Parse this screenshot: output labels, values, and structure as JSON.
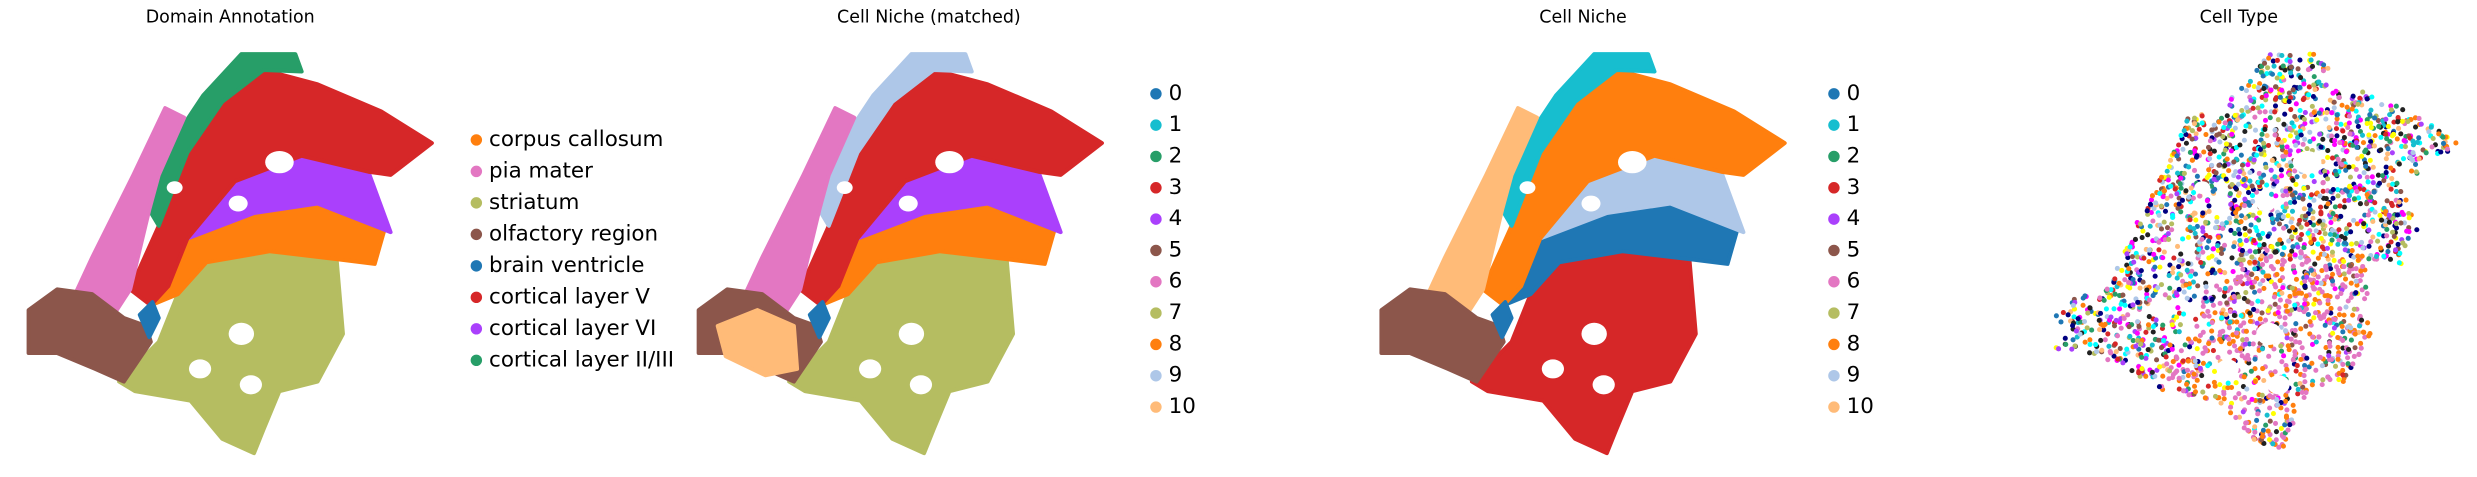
{
  "chart_data": [
    {
      "type": "scatter",
      "title": "Domain Annotation",
      "series": [
        {
          "name": "corpus callosum",
          "color": "#ff7f0e"
        },
        {
          "name": "pia mater",
          "color": "#e377c2"
        },
        {
          "name": "striatum",
          "color": "#b5bd61"
        },
        {
          "name": "olfactory region",
          "color": "#8c564b"
        },
        {
          "name": "brain ventricle",
          "color": "#1f77b4"
        },
        {
          "name": "cortical layer V",
          "color": "#d62728"
        },
        {
          "name": "cortical layer VI",
          "color": "#aa40fc"
        },
        {
          "name": "cortical layer II/III",
          "color": "#279e68"
        }
      ]
    },
    {
      "type": "scatter",
      "title": "Cell Niche (matched)",
      "series": [
        {
          "name": "0",
          "color": "#1f77b4"
        },
        {
          "name": "1",
          "color": "#17becf"
        },
        {
          "name": "2",
          "color": "#279e68"
        },
        {
          "name": "3",
          "color": "#d62728"
        },
        {
          "name": "4",
          "color": "#aa40fc"
        },
        {
          "name": "5",
          "color": "#8c564b"
        },
        {
          "name": "6",
          "color": "#e377c2"
        },
        {
          "name": "7",
          "color": "#b5bd61"
        },
        {
          "name": "8",
          "color": "#ff7f0e"
        },
        {
          "name": "9",
          "color": "#aec7e8"
        },
        {
          "name": "10",
          "color": "#ffbb78"
        }
      ]
    },
    {
      "type": "scatter",
      "title": "Cell Niche",
      "series": [
        {
          "name": "0",
          "color": "#1f77b4"
        },
        {
          "name": "1",
          "color": "#17becf"
        },
        {
          "name": "2",
          "color": "#279e68"
        },
        {
          "name": "3",
          "color": "#d62728"
        },
        {
          "name": "4",
          "color": "#aa40fc"
        },
        {
          "name": "5",
          "color": "#8c564b"
        },
        {
          "name": "6",
          "color": "#e377c2"
        },
        {
          "name": "7",
          "color": "#b5bd61"
        },
        {
          "name": "8",
          "color": "#ff7f0e"
        },
        {
          "name": "9",
          "color": "#aec7e8"
        },
        {
          "name": "10",
          "color": "#ffbb78"
        }
      ]
    },
    {
      "type": "scatter",
      "title": "Cell Type"
    }
  ]
}
